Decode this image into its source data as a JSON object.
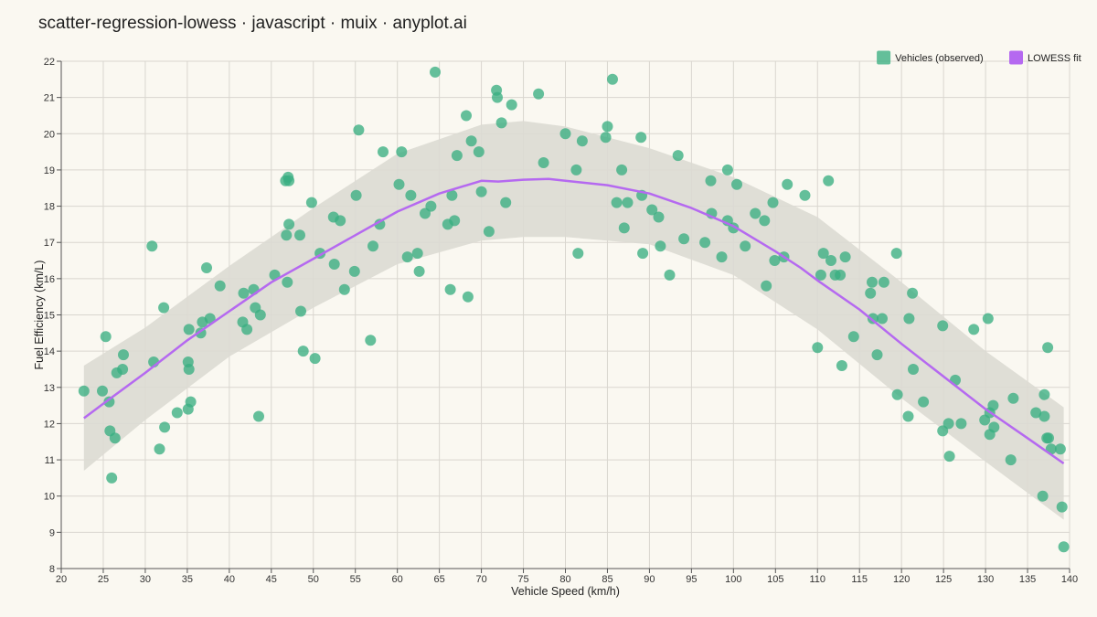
{
  "title": "scatter-regression-lowess · javascript · muix · anyplot.ai",
  "chart_data": {
    "type": "scatter",
    "title": "scatter-regression-lowess · javascript · muix · anyplot.ai",
    "xlabel": "Vehicle Speed (km/h)",
    "ylabel": "Fuel Efficiency (km/L)",
    "xlim": [
      20,
      140
    ],
    "ylim": [
      8,
      22
    ],
    "xticks": [
      20,
      25,
      30,
      35,
      40,
      45,
      50,
      55,
      60,
      65,
      70,
      75,
      80,
      85,
      90,
      95,
      100,
      105,
      110,
      115,
      120,
      125,
      130,
      135,
      140
    ],
    "yticks": [
      8,
      9,
      10,
      11,
      12,
      13,
      14,
      15,
      16,
      17,
      18,
      19,
      20,
      21,
      22
    ],
    "grid": true,
    "legend_position": "top-right",
    "colors": {
      "points": "#3AAE82",
      "fit": "#B569F0",
      "band": "#DCDAD3",
      "background": "#FAF8F1"
    },
    "series": [
      {
        "name": "Vehicles (observed)",
        "kind": "scatter",
        "points": [
          [
            22.7,
            12.9
          ],
          [
            24.9,
            12.9
          ],
          [
            25.3,
            14.4
          ],
          [
            25.7,
            12.6
          ],
          [
            25.8,
            11.8
          ],
          [
            26.0,
            10.5
          ],
          [
            26.4,
            11.6
          ],
          [
            26.6,
            13.4
          ],
          [
            27.3,
            13.5
          ],
          [
            27.4,
            13.9
          ],
          [
            30.8,
            16.9
          ],
          [
            31.0,
            13.7
          ],
          [
            31.7,
            11.3
          ],
          [
            32.2,
            15.2
          ],
          [
            32.3,
            11.9
          ],
          [
            33.8,
            12.3
          ],
          [
            35.1,
            12.4
          ],
          [
            35.1,
            13.7
          ],
          [
            35.2,
            13.5
          ],
          [
            35.2,
            14.6
          ],
          [
            35.4,
            12.6
          ],
          [
            36.6,
            14.5
          ],
          [
            36.8,
            14.8
          ],
          [
            37.3,
            16.3
          ],
          [
            37.7,
            14.9
          ],
          [
            38.9,
            15.8
          ],
          [
            41.6,
            14.8
          ],
          [
            41.7,
            15.6
          ],
          [
            42.1,
            14.6
          ],
          [
            42.9,
            15.7
          ],
          [
            43.1,
            15.2
          ],
          [
            43.5,
            12.2
          ],
          [
            43.7,
            15.0
          ],
          [
            45.4,
            16.1
          ],
          [
            46.7,
            18.7
          ],
          [
            46.8,
            17.2
          ],
          [
            46.9,
            15.9
          ],
          [
            47.0,
            18.8
          ],
          [
            47.1,
            18.7
          ],
          [
            47.1,
            17.5
          ],
          [
            48.4,
            17.2
          ],
          [
            48.5,
            15.1
          ],
          [
            48.8,
            14.0
          ],
          [
            49.8,
            18.1
          ],
          [
            50.2,
            13.8
          ],
          [
            50.8,
            16.7
          ],
          [
            52.4,
            17.7
          ],
          [
            52.5,
            16.4
          ],
          [
            53.2,
            17.6
          ],
          [
            53.7,
            15.7
          ],
          [
            54.9,
            16.2
          ],
          [
            55.1,
            18.3
          ],
          [
            55.4,
            20.1
          ],
          [
            56.8,
            14.3
          ],
          [
            57.1,
            16.9
          ],
          [
            57.9,
            17.5
          ],
          [
            58.3,
            19.5
          ],
          [
            60.2,
            18.6
          ],
          [
            60.5,
            19.5
          ],
          [
            61.2,
            16.6
          ],
          [
            61.6,
            18.3
          ],
          [
            62.4,
            16.7
          ],
          [
            62.6,
            16.2
          ],
          [
            63.3,
            17.8
          ],
          [
            64.0,
            18.0
          ],
          [
            64.5,
            21.7
          ],
          [
            66.0,
            17.5
          ],
          [
            66.3,
            15.7
          ],
          [
            66.5,
            18.3
          ],
          [
            66.8,
            17.6
          ],
          [
            67.1,
            19.4
          ],
          [
            68.2,
            20.5
          ],
          [
            68.4,
            15.5
          ],
          [
            68.8,
            19.8
          ],
          [
            69.7,
            19.5
          ],
          [
            70.0,
            18.4
          ],
          [
            70.9,
            17.3
          ],
          [
            71.8,
            21.2
          ],
          [
            71.9,
            21.0
          ],
          [
            72.4,
            20.3
          ],
          [
            72.9,
            18.1
          ],
          [
            73.6,
            20.8
          ],
          [
            76.8,
            21.1
          ],
          [
            77.4,
            19.2
          ],
          [
            80.0,
            20.0
          ],
          [
            81.3,
            19.0
          ],
          [
            81.5,
            16.7
          ],
          [
            82.0,
            19.8
          ],
          [
            84.8,
            19.9
          ],
          [
            85.0,
            20.2
          ],
          [
            85.6,
            21.5
          ],
          [
            86.1,
            18.1
          ],
          [
            86.7,
            19.0
          ],
          [
            87.0,
            17.4
          ],
          [
            87.4,
            18.1
          ],
          [
            89.0,
            19.9
          ],
          [
            89.1,
            18.3
          ],
          [
            89.2,
            16.7
          ],
          [
            90.3,
            17.9
          ],
          [
            91.1,
            17.7
          ],
          [
            91.3,
            16.9
          ],
          [
            92.4,
            16.1
          ],
          [
            93.4,
            19.4
          ],
          [
            94.1,
            17.1
          ],
          [
            96.6,
            17.0
          ],
          [
            97.3,
            18.7
          ],
          [
            97.4,
            17.8
          ],
          [
            98.6,
            16.6
          ],
          [
            99.3,
            19.0
          ],
          [
            99.3,
            17.6
          ],
          [
            100.0,
            17.4
          ],
          [
            100.4,
            18.6
          ],
          [
            101.4,
            16.9
          ],
          [
            102.6,
            17.8
          ],
          [
            103.7,
            17.6
          ],
          [
            103.9,
            15.8
          ],
          [
            104.7,
            18.1
          ],
          [
            104.9,
            16.5
          ],
          [
            106.0,
            16.6
          ],
          [
            106.4,
            18.6
          ],
          [
            108.5,
            18.3
          ],
          [
            110.0,
            14.1
          ],
          [
            110.4,
            16.1
          ],
          [
            110.7,
            16.7
          ],
          [
            111.3,
            18.7
          ],
          [
            111.6,
            16.5
          ],
          [
            112.1,
            16.1
          ],
          [
            112.7,
            16.1
          ],
          [
            112.9,
            13.6
          ],
          [
            113.3,
            16.6
          ],
          [
            114.3,
            14.4
          ],
          [
            116.3,
            15.6
          ],
          [
            116.5,
            15.9
          ],
          [
            116.6,
            14.9
          ],
          [
            117.1,
            13.9
          ],
          [
            117.7,
            14.9
          ],
          [
            117.9,
            15.9
          ],
          [
            119.4,
            16.7
          ],
          [
            119.5,
            12.8
          ],
          [
            120.8,
            12.2
          ],
          [
            120.9,
            14.9
          ],
          [
            121.3,
            15.6
          ],
          [
            121.4,
            13.5
          ],
          [
            122.6,
            12.6
          ],
          [
            124.9,
            14.7
          ],
          [
            124.9,
            11.8
          ],
          [
            125.6,
            12.0
          ],
          [
            125.7,
            11.1
          ],
          [
            126.4,
            13.2
          ],
          [
            127.1,
            12.0
          ],
          [
            128.6,
            14.6
          ],
          [
            129.9,
            12.1
          ],
          [
            130.3,
            14.9
          ],
          [
            130.5,
            12.3
          ],
          [
            130.5,
            11.7
          ],
          [
            130.9,
            12.5
          ],
          [
            131.0,
            11.9
          ],
          [
            133.0,
            11.0
          ],
          [
            133.3,
            12.7
          ],
          [
            136.0,
            12.3
          ],
          [
            136.8,
            10.0
          ],
          [
            137.0,
            12.8
          ],
          [
            137.0,
            12.2
          ],
          [
            137.3,
            11.6
          ],
          [
            137.4,
            14.1
          ],
          [
            137.5,
            11.6
          ],
          [
            137.8,
            11.3
          ],
          [
            138.9,
            11.3
          ],
          [
            139.1,
            9.7
          ],
          [
            139.3,
            8.6
          ]
        ]
      },
      {
        "name": "LOWESS fit",
        "kind": "line",
        "x": [
          22.7,
          25,
          30,
          35,
          40,
          45,
          50,
          55,
          60,
          65,
          70,
          72,
          75,
          78,
          80,
          85,
          90,
          95,
          100,
          105,
          108,
          110,
          115,
          120,
          125,
          130,
          135,
          139.3
        ],
        "y": [
          12.15,
          12.55,
          13.4,
          14.3,
          15.1,
          15.9,
          16.55,
          17.2,
          17.85,
          18.35,
          18.7,
          18.68,
          18.73,
          18.75,
          18.7,
          18.58,
          18.35,
          17.95,
          17.45,
          16.75,
          16.3,
          15.95,
          15.15,
          14.2,
          13.3,
          12.4,
          11.6,
          10.9
        ]
      },
      {
        "name": "band",
        "kind": "band",
        "x": [
          22.7,
          30,
          40,
          50,
          60,
          70,
          75,
          80,
          90,
          100,
          110,
          120,
          130,
          139.3
        ],
        "upper": [
          13.6,
          14.65,
          16.35,
          17.95,
          19.45,
          20.25,
          20.35,
          20.2,
          19.6,
          18.8,
          17.7,
          15.9,
          14.0,
          12.45
        ],
        "lower": [
          10.7,
          12.1,
          13.85,
          15.2,
          16.4,
          17.05,
          17.15,
          17.15,
          16.95,
          16.1,
          14.6,
          12.7,
          10.95,
          9.35
        ]
      }
    ],
    "legend": [
      {
        "label": "Vehicles (observed)",
        "color": "#3AAE82"
      },
      {
        "label": "LOWESS fit",
        "color": "#B569F0"
      }
    ]
  }
}
